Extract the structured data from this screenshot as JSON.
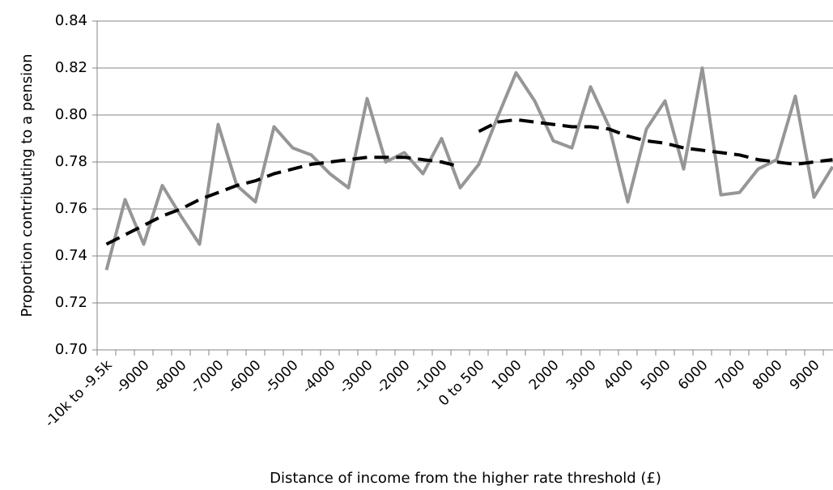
{
  "chart_data": {
    "type": "line",
    "x_label": "Distance of income from the higher rate threshold (£)",
    "y_label": "Proportion contributing to a pension",
    "categories": [
      "-10k to -9.5k",
      null,
      "-9000",
      null,
      "-8000",
      null,
      "-7000",
      null,
      "-6000",
      null,
      "-5000",
      null,
      "-4000",
      null,
      "-3000",
      null,
      "-2000",
      null,
      "-1000",
      null,
      "0 to 500",
      null,
      "1000",
      null,
      "2000",
      null,
      "3000",
      null,
      "4000",
      null,
      "5000",
      null,
      "6000",
      null,
      "7000",
      null,
      "8000",
      null,
      "9000",
      null
    ],
    "series": [
      {
        "color": "#969696",
        "dash": false,
        "values": [
          0.734,
          0.764,
          0.745,
          0.77,
          0.757,
          0.745,
          0.796,
          0.77,
          0.763,
          0.795,
          0.786,
          0.783,
          0.775,
          0.769,
          0.807,
          0.78,
          0.784,
          0.775,
          0.79,
          0.769,
          0.779,
          0.799,
          0.818,
          0.806,
          0.789,
          0.786,
          0.812,
          0.795,
          0.763,
          0.794,
          0.806,
          0.777,
          0.82,
          0.766,
          0.767,
          0.777,
          0.781,
          0.808,
          0.765,
          0.778
        ]
      },
      {
        "color": "#000000",
        "dash": true,
        "values": [
          0.745,
          0.749,
          0.753,
          0.757,
          0.76,
          0.764,
          0.767,
          0.77,
          0.772,
          0.775,
          0.777,
          0.779,
          0.78,
          0.781,
          0.782,
          0.782,
          0.782,
          0.781,
          0.78,
          0.778,
          null,
          0.797,
          0.798,
          0.797,
          0.796,
          0.795,
          0.795,
          0.794,
          0.791,
          0.789,
          0.788,
          0.786,
          0.785,
          0.784,
          0.783,
          0.781,
          0.78,
          0.779,
          0.78,
          0.781
        ]
      },
      {
        "color": "#000000",
        "dash": true,
        "values": [
          null,
          null,
          null,
          null,
          null,
          null,
          null,
          null,
          null,
          null,
          null,
          null,
          null,
          null,
          null,
          null,
          null,
          null,
          null,
          null,
          0.793,
          0.797,
          null,
          null,
          null,
          null,
          null,
          null,
          null,
          null,
          null,
          null,
          null,
          null,
          null,
          null,
          null,
          null,
          null,
          null
        ]
      }
    ],
    "ylim": [
      0.7,
      0.84
    ],
    "yticks": [
      {
        "value": 0.7,
        "label": "0.70"
      },
      0.72,
      0.74,
      0.76,
      0.78,
      {
        "value": 0.8,
        "label": "0.80"
      },
      0.82,
      0.84
    ],
    "grid": true
  }
}
